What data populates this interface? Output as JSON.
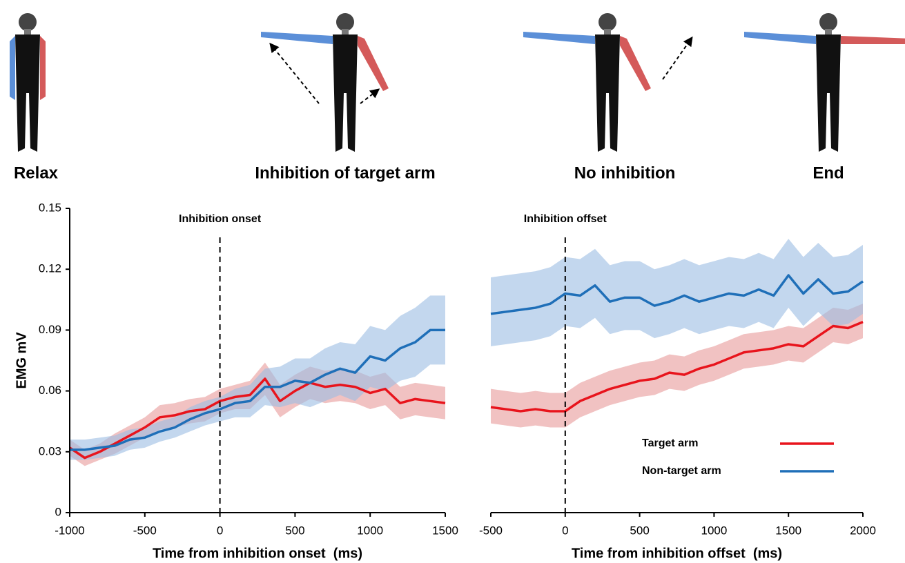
{
  "panels": [
    "Relax",
    "Inhibition of target arm",
    "No inhibition",
    "End"
  ],
  "chart_data": [
    {
      "type": "line",
      "y_label": "EMG mV",
      "x_label": "Time from inhibition onset  (ms)",
      "xlim": [
        -1000,
        1500
      ],
      "xticks": [
        -1000,
        -500,
        0,
        500,
        1000,
        1500
      ],
      "ylim": [
        0,
        0.15
      ],
      "yticks": [
        0,
        0.03,
        0.06,
        0.09,
        0.12,
        0.15
      ],
      "annotations": [
        {
          "text": "Inhibition onset",
          "x": 0
        }
      ],
      "x": [
        -1000,
        -900,
        -800,
        -700,
        -600,
        -500,
        -400,
        -300,
        -200,
        -100,
        0,
        100,
        200,
        300,
        400,
        500,
        600,
        700,
        800,
        900,
        1000,
        1100,
        1200,
        1300,
        1400,
        1500
      ],
      "series": [
        {
          "color": "#e8141c",
          "band_color": "#e89a9a",
          "values": [
            0.032,
            0.027,
            0.03,
            0.034,
            0.038,
            0.042,
            0.047,
            0.048,
            0.05,
            0.051,
            0.055,
            0.057,
            0.058,
            0.066,
            0.055,
            0.06,
            0.064,
            0.062,
            0.063,
            0.062,
            0.059,
            0.061,
            0.054,
            0.056,
            0.055,
            0.054
          ],
          "lower": [
            0.028,
            0.023,
            0.026,
            0.029,
            0.033,
            0.037,
            0.041,
            0.042,
            0.044,
            0.045,
            0.049,
            0.051,
            0.051,
            0.058,
            0.047,
            0.052,
            0.056,
            0.054,
            0.055,
            0.054,
            0.051,
            0.053,
            0.046,
            0.048,
            0.047,
            0.046
          ],
          "upper": [
            0.036,
            0.031,
            0.034,
            0.039,
            0.043,
            0.047,
            0.053,
            0.054,
            0.056,
            0.057,
            0.061,
            0.063,
            0.065,
            0.074,
            0.063,
            0.068,
            0.072,
            0.07,
            0.071,
            0.07,
            0.067,
            0.069,
            0.062,
            0.064,
            0.063,
            0.062
          ]
        },
        {
          "color": "#1f6fb8",
          "band_color": "#9bbde3",
          "values": [
            0.031,
            0.031,
            0.032,
            0.033,
            0.036,
            0.037,
            0.04,
            0.042,
            0.046,
            0.049,
            0.051,
            0.054,
            0.055,
            0.062,
            0.062,
            0.065,
            0.064,
            0.068,
            0.071,
            0.069,
            0.077,
            0.075,
            0.081,
            0.084,
            0.09,
            0.09
          ],
          "lower": [
            0.026,
            0.026,
            0.027,
            0.028,
            0.031,
            0.032,
            0.035,
            0.037,
            0.04,
            0.043,
            0.045,
            0.047,
            0.047,
            0.053,
            0.052,
            0.054,
            0.052,
            0.055,
            0.058,
            0.055,
            0.062,
            0.06,
            0.065,
            0.067,
            0.073,
            0.073
          ],
          "upper": [
            0.036,
            0.036,
            0.037,
            0.038,
            0.041,
            0.042,
            0.045,
            0.047,
            0.052,
            0.055,
            0.057,
            0.061,
            0.063,
            0.071,
            0.072,
            0.076,
            0.076,
            0.081,
            0.084,
            0.083,
            0.092,
            0.09,
            0.097,
            0.101,
            0.107,
            0.107
          ]
        }
      ]
    },
    {
      "type": "line",
      "x_label": "Time from inhibition offset  (ms)",
      "xlim": [
        -500,
        2000
      ],
      "xticks": [
        -500,
        0,
        500,
        1000,
        1500,
        2000
      ],
      "ylim": [
        0,
        0.15
      ],
      "legend": "lower right",
      "annotations": [
        {
          "text": "Inhibition offset",
          "x": 0
        }
      ],
      "x": [
        -500,
        -400,
        -300,
        -200,
        -100,
        0,
        100,
        200,
        300,
        400,
        500,
        600,
        700,
        800,
        900,
        1000,
        1100,
        1200,
        1300,
        1400,
        1500,
        1600,
        1700,
        1800,
        1900,
        2000
      ],
      "series": [
        {
          "name": "Target arm",
          "color": "#e8141c",
          "band_color": "#e89a9a",
          "values": [
            0.052,
            0.051,
            0.05,
            0.051,
            0.05,
            0.05,
            0.055,
            0.058,
            0.061,
            0.063,
            0.065,
            0.066,
            0.069,
            0.068,
            0.071,
            0.073,
            0.076,
            0.079,
            0.08,
            0.081,
            0.083,
            0.082,
            0.087,
            0.092,
            0.091,
            0.094
          ],
          "lower": [
            0.044,
            0.043,
            0.042,
            0.043,
            0.042,
            0.042,
            0.047,
            0.05,
            0.053,
            0.055,
            0.057,
            0.058,
            0.061,
            0.06,
            0.063,
            0.065,
            0.068,
            0.071,
            0.072,
            0.073,
            0.075,
            0.074,
            0.079,
            0.084,
            0.083,
            0.086
          ],
          "upper": [
            0.061,
            0.06,
            0.059,
            0.06,
            0.059,
            0.059,
            0.064,
            0.067,
            0.07,
            0.072,
            0.074,
            0.075,
            0.078,
            0.077,
            0.08,
            0.082,
            0.085,
            0.088,
            0.089,
            0.09,
            0.092,
            0.091,
            0.096,
            0.101,
            0.1,
            0.103
          ]
        },
        {
          "name": "Non-target arm",
          "color": "#1f6fb8",
          "band_color": "#9bbde3",
          "values": [
            0.098,
            0.099,
            0.1,
            0.101,
            0.103,
            0.108,
            0.107,
            0.112,
            0.104,
            0.106,
            0.106,
            0.102,
            0.104,
            0.107,
            0.104,
            0.106,
            0.108,
            0.107,
            0.11,
            0.107,
            0.117,
            0.108,
            0.115,
            0.108,
            0.109,
            0.114
          ],
          "lower": [
            0.082,
            0.083,
            0.084,
            0.085,
            0.087,
            0.092,
            0.091,
            0.096,
            0.088,
            0.09,
            0.09,
            0.086,
            0.088,
            0.091,
            0.088,
            0.09,
            0.092,
            0.091,
            0.094,
            0.091,
            0.101,
            0.092,
            0.099,
            0.092,
            0.093,
            0.098
          ],
          "upper": [
            0.116,
            0.117,
            0.118,
            0.119,
            0.121,
            0.126,
            0.125,
            0.13,
            0.122,
            0.124,
            0.124,
            0.12,
            0.122,
            0.125,
            0.122,
            0.124,
            0.126,
            0.125,
            0.128,
            0.125,
            0.135,
            0.126,
            0.133,
            0.126,
            0.127,
            0.132
          ]
        }
      ]
    }
  ]
}
